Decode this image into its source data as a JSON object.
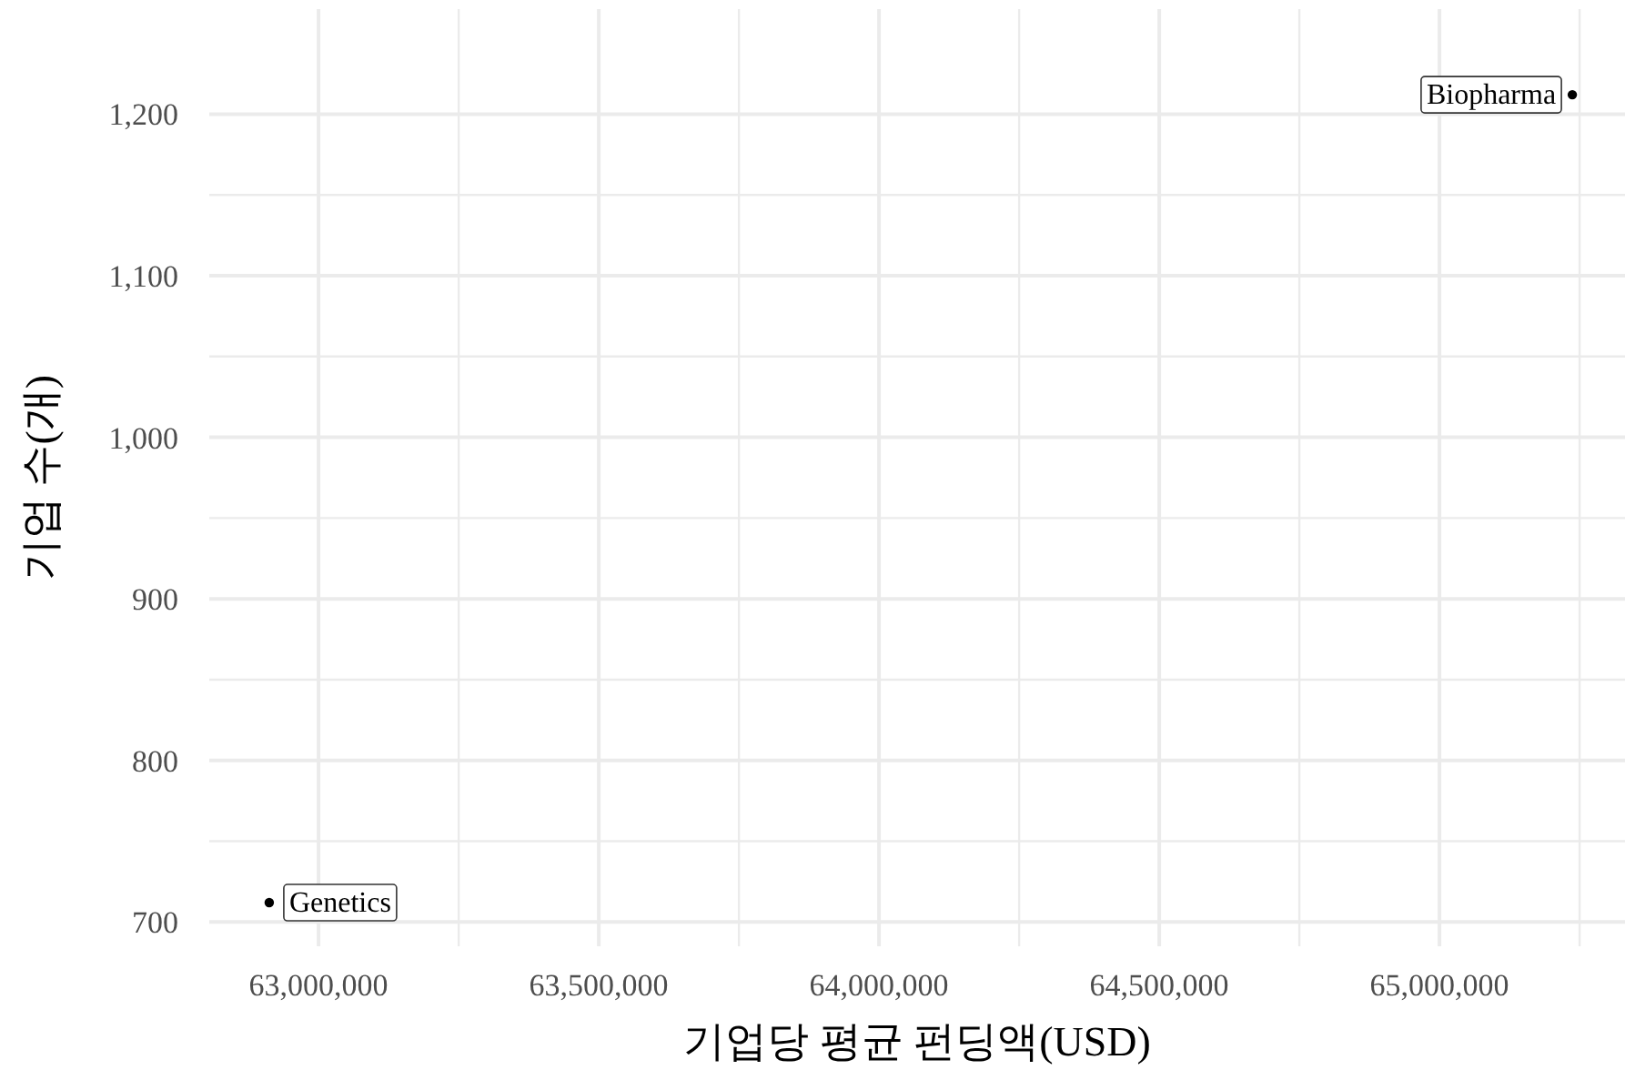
{
  "chart_data": {
    "type": "scatter",
    "xlabel": "기업당 평균 펀딩액(USD)",
    "ylabel": "기업 수(개)",
    "x": [
      62912000,
      65237000
    ],
    "values": [
      712,
      1212
    ],
    "color": "#000000",
    "marker": "circle",
    "grid": true,
    "xlim": [
      62805000,
      65331000
    ],
    "ylim": [
      685,
      1265
    ],
    "xticks": [
      {
        "value": 63000000,
        "label": "63,000,000"
      },
      {
        "value": 63250000,
        "label": null
      },
      {
        "value": 63500000,
        "label": "63,500,000"
      },
      {
        "value": 63750000,
        "label": null
      },
      {
        "value": 64000000,
        "label": "64,000,000"
      },
      {
        "value": 64250000,
        "label": null
      },
      {
        "value": 64500000,
        "label": "64,500,000"
      },
      {
        "value": 64750000,
        "label": null
      },
      {
        "value": 65000000,
        "label": "65,000,000"
      },
      {
        "value": 65250000,
        "label": null
      }
    ],
    "yticks": [
      {
        "value": 700,
        "label": "700"
      },
      {
        "value": 750,
        "label": null
      },
      {
        "value": 800,
        "label": "800"
      },
      {
        "value": 850,
        "label": null
      },
      {
        "value": 900,
        "label": "900"
      },
      {
        "value": 950,
        "label": null
      },
      {
        "value": 1000,
        "label": "1,000"
      },
      {
        "value": 1050,
        "label": null
      },
      {
        "value": 1100,
        "label": "1,100"
      },
      {
        "value": 1150,
        "label": null
      },
      {
        "value": 1200,
        "label": "1,200"
      }
    ],
    "annotations": [
      {
        "text": "Genetics",
        "x": 62912000,
        "y": 712
      },
      {
        "text": "Biopharma",
        "x": 65237000,
        "y": 1212
      }
    ]
  }
}
